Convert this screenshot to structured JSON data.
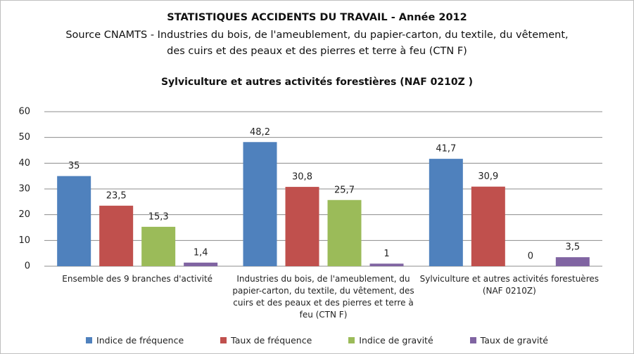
{
  "chart_data": {
    "type": "bar",
    "title": "STATISTIQUES ACCIDENTS DU TRAVAIL - Année 2012",
    "subtitle": "Source CNAMTS -  Industries du bois, de l'ameublement, du papier-carton, du textile, du vêtement, des cuirs et des peaux et des pierres et terre à feu (CTN F)",
    "subtitle2": "Sylviculture et autres activités forestières (NAF 0210Z )",
    "categories": [
      "Ensemble des 9 branches d'activité",
      "Industries du bois, de l'ameublement, du papier-carton, du textile, du vêtement, des cuirs et des peaux et des pierres et terre à feu (CTN F)",
      "Sylviculture et autres activités forestuères (NAF 0210Z)"
    ],
    "series": [
      {
        "name": "Indice de fréquence",
        "color": "#4f81bd",
        "values": [
          35,
          48.2,
          41.7
        ],
        "value_labels": [
          "35",
          "48,2",
          "41,7"
        ]
      },
      {
        "name": "Taux de fréquence",
        "color": "#c0504d",
        "values": [
          23.5,
          30.8,
          30.9
        ],
        "value_labels": [
          "23,5",
          "30,8",
          "30,9"
        ]
      },
      {
        "name": "Indice de gravité",
        "color": "#9bbb59",
        "values": [
          15.3,
          25.7,
          0
        ],
        "value_labels": [
          "15,3",
          "25,7",
          "0"
        ]
      },
      {
        "name": "Taux de gravité",
        "color": "#8064a2",
        "values": [
          1.4,
          1,
          3.5
        ],
        "value_labels": [
          "1,4",
          "1",
          "3,5"
        ]
      }
    ],
    "ylim": [
      0,
      60
    ],
    "yticks": [
      0,
      10,
      20,
      30,
      40,
      50,
      60
    ],
    "grid": true,
    "legend": "bottom"
  }
}
